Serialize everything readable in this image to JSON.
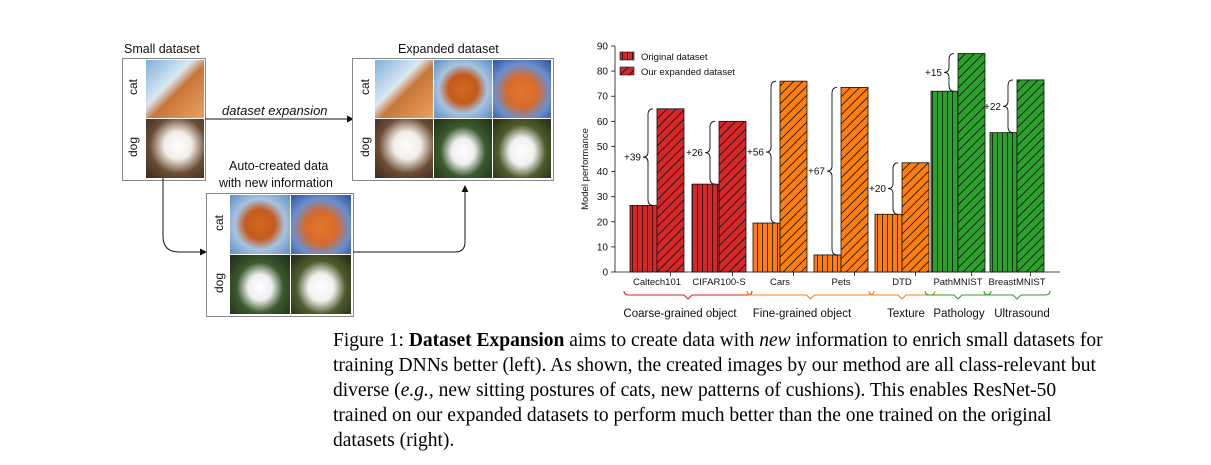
{
  "left_figure": {
    "small_title": "Small dataset",
    "expanded_title": "Expanded dataset",
    "arrow_label": "dataset expansion",
    "auto_title_line1": "Auto-created data",
    "auto_title_line2": "with new information",
    "row_cat": "cat",
    "row_dog": "dog"
  },
  "chart_data": {
    "type": "bar",
    "ylabel": "Model performance",
    "ylim": [
      0,
      90
    ],
    "yticks": [
      0,
      10,
      20,
      30,
      40,
      50,
      60,
      70,
      80,
      90
    ],
    "legend_position": "top-left",
    "categories": [
      "Caltech101",
      "CIFAR100-S",
      "Cars",
      "Pets",
      "DTD",
      "PathMNIST",
      "BreastMNIST"
    ],
    "series": [
      {
        "name": "Original dataset",
        "values": [
          26.5,
          35,
          19.5,
          6.8,
          23,
          72,
          55.5
        ]
      },
      {
        "name": "Our expanded dataset",
        "values": [
          65,
          60,
          76,
          73.5,
          43.5,
          87,
          76.5
        ]
      }
    ],
    "gains": [
      "+39",
      "+26",
      "+56",
      "+67",
      "+20",
      "+15",
      "+22"
    ],
    "groups": [
      {
        "label": "Coarse-grained object",
        "color": "#d62728",
        "categories": [
          0,
          1
        ]
      },
      {
        "label": "Fine-grained object",
        "color": "#ff7f0e",
        "categories": [
          2,
          3
        ]
      },
      {
        "label": "Texture",
        "color": "#ff7f0e",
        "categories": [
          4
        ]
      },
      {
        "label": "Pathology",
        "color": "#2ca02c",
        "categories": [
          5
        ]
      },
      {
        "label": "Ultrasound",
        "color": "#2ca02c",
        "categories": [
          6
        ]
      }
    ],
    "colors": {
      "red": "#d62728",
      "orange": "#ff7f0e",
      "green": "#2ca02c"
    }
  },
  "caption": {
    "prefix": "Figure 1: ",
    "bold": "Dataset Expansion",
    "t1": " aims to create data with ",
    "ital": "new",
    "t2": " information to enrich small datasets for training DNNs better (left). As shown, the created images by our method are all class-relevant but diverse (",
    "eg": "e.g.,",
    "t3": " new sitting postures of cats, new patterns of cushions). This enables ResNet-50 trained on our expanded datasets to perform much better than the one trained on the original datasets (right)."
  }
}
